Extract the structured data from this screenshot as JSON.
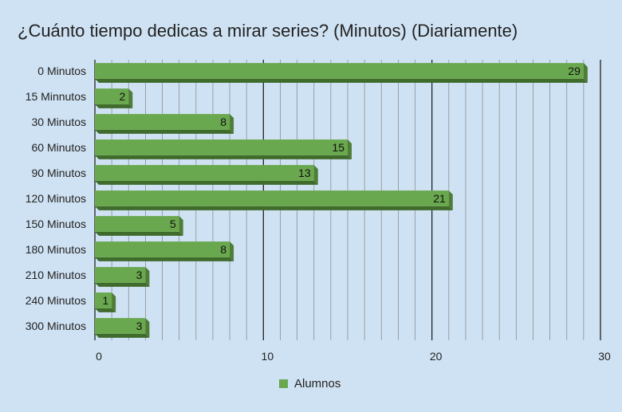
{
  "chart_data": {
    "type": "bar",
    "orientation": "horizontal",
    "title": "¿Cuánto tiempo dedicas a mirar series? (Minutos) (Diariamente)",
    "categories": [
      "0 Minutos",
      "15 Minnutos",
      "30 Minutos",
      "60 Minutos",
      "90 Minutos",
      "120 Minutos",
      "150 Minutos",
      "180 Minutos",
      "210 Minutos",
      "240 Minutos",
      "300 Minutos"
    ],
    "series": [
      {
        "name": "Alumnos",
        "values": [
          29,
          2,
          8,
          15,
          13,
          21,
          5,
          8,
          3,
          1,
          3
        ],
        "color": "#6aa84f"
      }
    ],
    "xlim": [
      0,
      30
    ],
    "x_ticks": [
      0,
      10,
      20,
      30
    ],
    "grid": true,
    "legend_position": "bottom",
    "data_labels": true
  }
}
